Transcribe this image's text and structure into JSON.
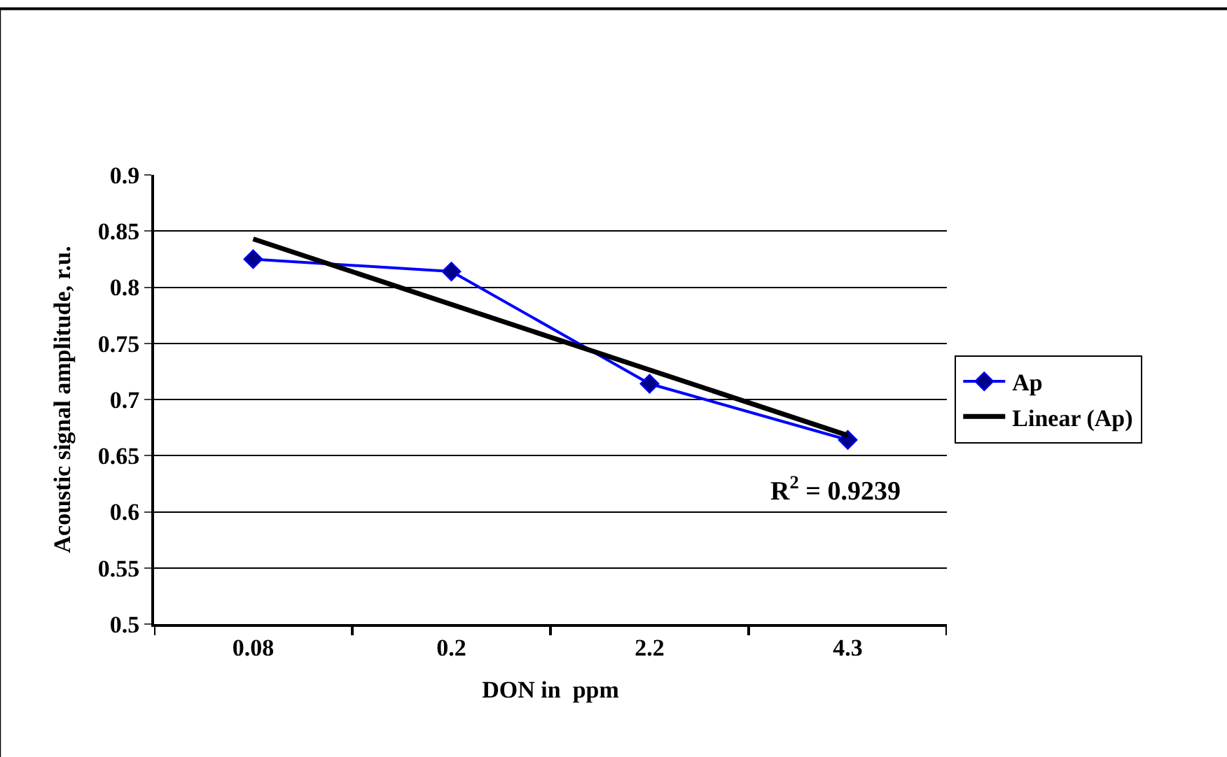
{
  "chart_data": {
    "type": "line",
    "xlabel": "DON in  ppm",
    "ylabel": "Acoustic signal amplitude, r.u.",
    "categories": [
      "0.08",
      "0.2",
      "2.2",
      "4.3"
    ],
    "series": [
      {
        "name": "Ap",
        "color": "#0000ff",
        "values": [
          0.825,
          0.814,
          0.714,
          0.664
        ],
        "marker": "diamond"
      },
      {
        "name": "Linear (Ap)",
        "color": "#000000",
        "type": "line",
        "x": [
          "0.08",
          "4.3"
        ],
        "values": [
          0.843,
          0.668
        ],
        "marker": "none"
      }
    ],
    "ylim": [
      0.5,
      0.9
    ],
    "yticks": [
      0.5,
      0.55,
      0.6,
      0.65,
      0.7,
      0.75,
      0.8,
      0.85,
      0.9
    ],
    "grid": "y",
    "legend": "right",
    "annotations": [
      "R$^{2}$ = 0.9239"
    ]
  }
}
